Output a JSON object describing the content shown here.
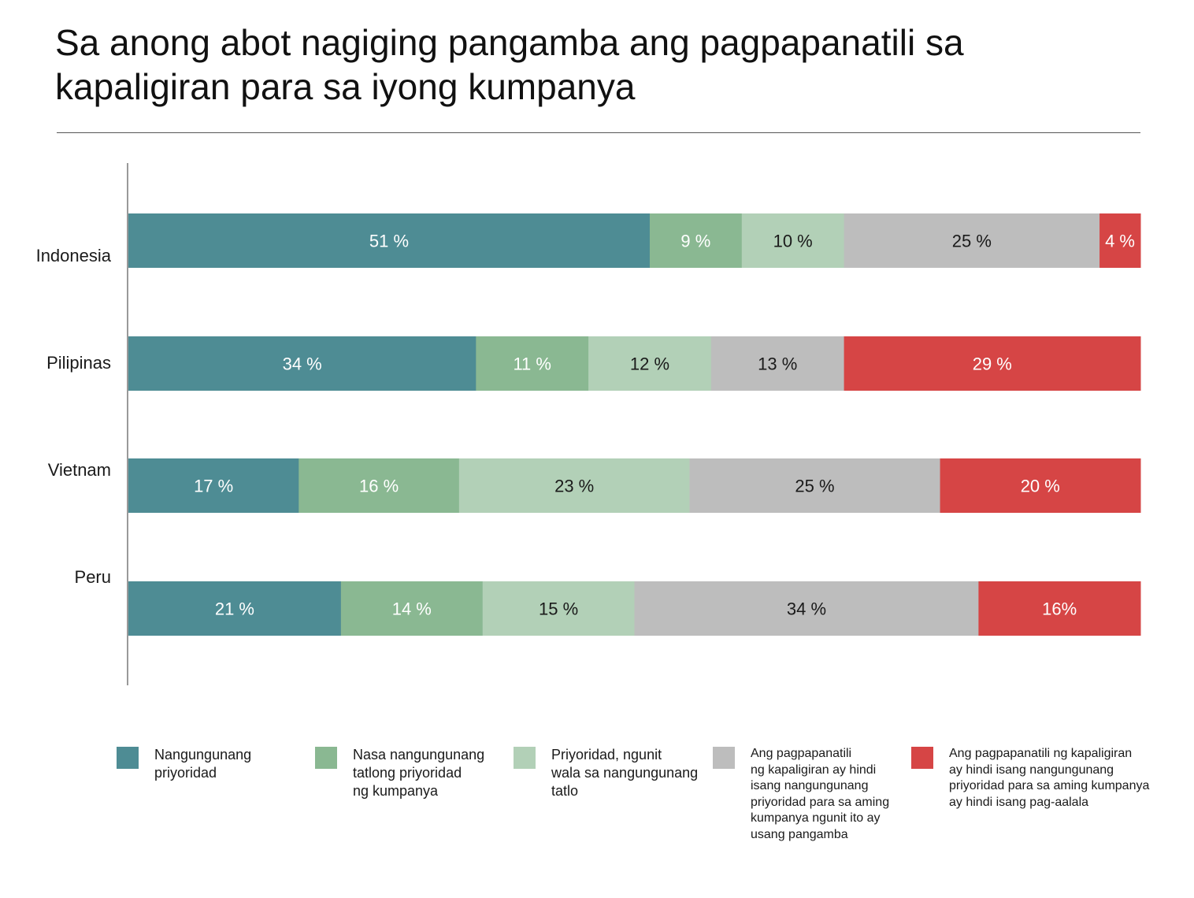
{
  "title": "Sa anong abot nagiging pangamba ang pagpapanatili sa kapaligiran para sa iyong kumpanya",
  "chart_data": {
    "type": "bar",
    "orientation": "horizontal",
    "stacked": true,
    "categories": [
      "Indonesia",
      "Pilipinas",
      "Vietnam",
      "Peru"
    ],
    "series": [
      {
        "name": "Nangungunang\npriyoridad",
        "color": "#4E8C94",
        "label_color": "#ffffff",
        "values": [
          51,
          34,
          17,
          21
        ],
        "labels": [
          "51 %",
          "34 %",
          "17 %",
          "21 %"
        ]
      },
      {
        "name": "Nasa nangungunang\ntatlong priyoridad\nng kumpanya",
        "color": "#8AB892",
        "label_color": "#ffffff",
        "values": [
          9,
          11,
          16,
          14
        ],
        "labels": [
          "9 %",
          "11 %",
          "16 %",
          "14 %"
        ]
      },
      {
        "name": "Priyoridad, ngunit\nwala sa nangungunang\ntatlo",
        "color": "#B2D0B7",
        "label_color": "#1a1a1a",
        "values": [
          10,
          12,
          23,
          15
        ],
        "labels": [
          "10 %",
          "12 %",
          "23 %",
          "15 %"
        ]
      },
      {
        "name": "Ang pagpapanatili\nng kapaligiran ay hindi\nisang nangungunang\npriyoridad para sa aming\nkumpanya ngunit ito ay\nusang pangamba",
        "color": "#BDBDBD",
        "label_color": "#1a1a1a",
        "values": [
          25,
          13,
          25,
          34
        ],
        "labels": [
          "25 %",
          "13 %",
          "25 %",
          "34 %"
        ]
      },
      {
        "name": "Ang pagpapanatili ng kapaligiran\nay hindi isang nangungunang\npriyoridad para sa aming kumpanya\nay hindi isang pag-aalala",
        "color": "#D64545",
        "label_color": "#ffffff",
        "values": [
          4,
          29,
          20,
          16
        ],
        "labels": [
          "4 %",
          "29 %",
          "20 %",
          "16%"
        ]
      }
    ],
    "xlim": [
      0,
      100
    ],
    "legend_position": "bottom",
    "grid": false
  }
}
